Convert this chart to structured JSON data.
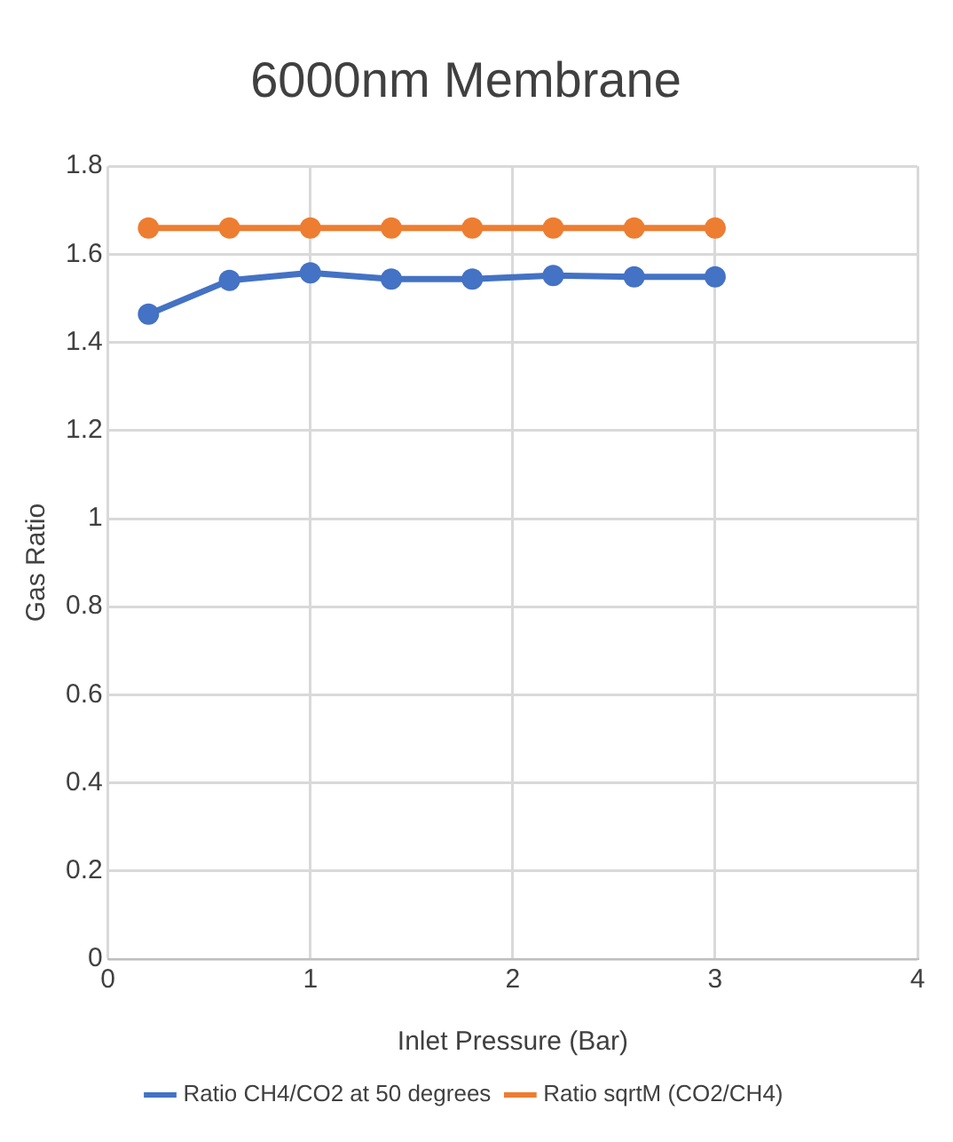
{
  "chart_data": {
    "type": "line",
    "title": "6000nm Membrane",
    "xlabel": "Inlet Pressure (Bar)",
    "ylabel": "Gas Ratio",
    "x": [
      0.2,
      0.6,
      1,
      1.4,
      1.8,
      2.2,
      2.6,
      3
    ],
    "series": [
      {
        "name": "Ratio CH4/CO2 at 50 degrees",
        "color": "#4472c4",
        "values": [
          1.464,
          1.541,
          1.558,
          1.544,
          1.544,
          1.552,
          1.549,
          1.549
        ]
      },
      {
        "name": "Ratio sqrtM (CO2/CH4)",
        "color": "#ed7d31",
        "values": [
          1.66,
          1.66,
          1.66,
          1.66,
          1.66,
          1.66,
          1.66,
          1.66
        ]
      }
    ],
    "xlim": [
      0,
      4
    ],
    "xticks": [
      0,
      1,
      2,
      3,
      4
    ],
    "ylim": [
      0,
      1.8
    ],
    "yticks": [
      0,
      0.2,
      0.4,
      0.6,
      0.8,
      1,
      1.2,
      1.4,
      1.6,
      1.8
    ],
    "grid": true,
    "legend": "bottom",
    "marker": "circle",
    "line_style": "solid"
  }
}
